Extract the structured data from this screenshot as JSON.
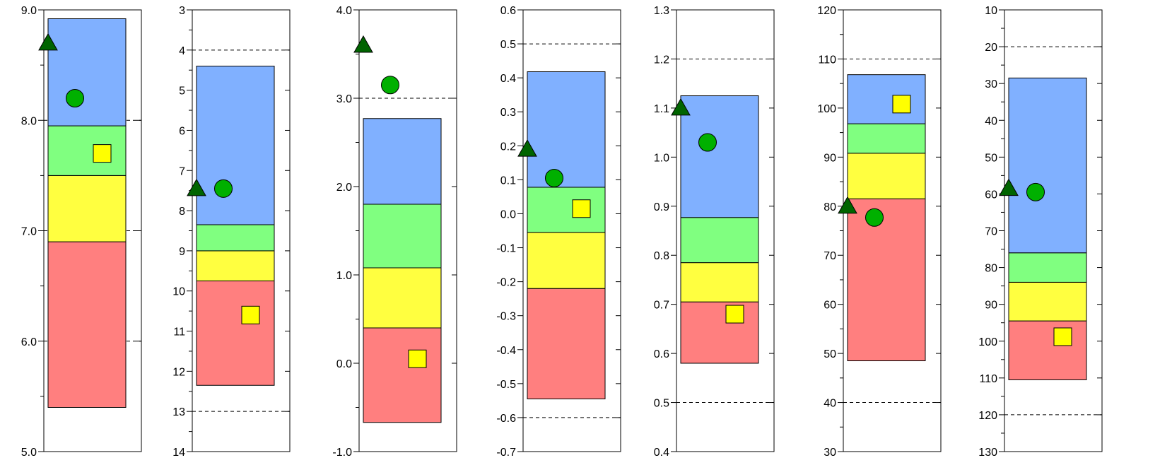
{
  "chart_data": {
    "type": "bar",
    "colors": {
      "band_1": "#ff7f7f",
      "band_2": "#ffff40",
      "band_3": "#80ff80",
      "band_4": "#80b0ff",
      "circle": "#00b000",
      "triangle": "#006400",
      "square": "#ffff00",
      "gridline": "#000000"
    },
    "panels": [
      {
        "ylim": [
          5.0,
          9.0
        ],
        "inverted": false,
        "ticks": [
          "5.0",
          "6.0",
          "7.0",
          "8.0",
          "9.0"
        ],
        "tick_values": [
          5,
          6,
          7,
          8,
          9
        ],
        "minor_step": 0.5,
        "grid": [
          6.0,
          7.0,
          8.0
        ],
        "bands": [
          5.4,
          6.9,
          7.5,
          7.95,
          8.92
        ],
        "triangle": 8.7,
        "circle": 8.2,
        "square": 7.7
      },
      {
        "ylim": [
          3,
          14
        ],
        "inverted": true,
        "ticks": [
          "3",
          "4",
          "5",
          "6",
          "7",
          "8",
          "9",
          "10",
          "11",
          "12",
          "13",
          "14"
        ],
        "tick_values": [
          3,
          4,
          5,
          6,
          7,
          8,
          9,
          10,
          11,
          12,
          13,
          14
        ],
        "minor_step": 0.5,
        "grid": [
          4,
          13
        ],
        "bands": [
          12.35,
          9.75,
          9.0,
          8.35,
          4.4
        ],
        "triangle": 7.45,
        "circle": 7.45,
        "square": 10.6
      },
      {
        "ylim": [
          -1.0,
          4.0
        ],
        "inverted": false,
        "ticks": [
          "-1.0",
          "0.0",
          "1.0",
          "2.0",
          "3.0",
          "4.0"
        ],
        "tick_values": [
          -1,
          0,
          1,
          2,
          3,
          4
        ],
        "minor_step": 0.5,
        "grid": [
          3.0
        ],
        "bands": [
          -0.67,
          0.4,
          1.08,
          1.8,
          2.77
        ],
        "triangle": 3.6,
        "circle": 3.15,
        "square": 0.05
      },
      {
        "ylim": [
          -0.7,
          0.6
        ],
        "inverted": false,
        "ticks": [
          "-0.7",
          "-0.6",
          "-0.5",
          "-0.4",
          "-0.3",
          "-0.2",
          "-0.1",
          "0.0",
          "0.1",
          "0.2",
          "0.3",
          "0.4",
          "0.5",
          "0.6"
        ],
        "tick_values": [
          -0.7,
          -0.6,
          -0.5,
          -0.4,
          -0.3,
          -0.2,
          -0.1,
          0,
          0.1,
          0.2,
          0.3,
          0.4,
          0.5,
          0.6
        ],
        "minor_step": 0.1,
        "grid": [
          -0.7,
          -0.6,
          0.5,
          0.6
        ],
        "bands": [
          -0.545,
          -0.22,
          -0.055,
          0.078,
          0.418
        ],
        "triangle": 0.19,
        "circle": 0.105,
        "square": 0.015
      },
      {
        "ylim": [
          0.4,
          1.3
        ],
        "inverted": false,
        "ticks": [
          "0.4",
          "0.5",
          "0.6",
          "0.7",
          "0.8",
          "0.9",
          "1.0",
          "1.1",
          "1.2",
          "1.3"
        ],
        "tick_values": [
          0.4,
          0.5,
          0.6,
          0.7,
          0.8,
          0.9,
          1.0,
          1.1,
          1.2,
          1.3
        ],
        "minor_step": 0.1,
        "grid": [
          0.5,
          1.2
        ],
        "bands": [
          0.58,
          0.705,
          0.785,
          0.877,
          1.125
        ],
        "triangle": 1.1,
        "circle": 1.03,
        "square": 0.68
      },
      {
        "ylim": [
          30,
          120
        ],
        "inverted": false,
        "ticks": [
          "30",
          "40",
          "50",
          "60",
          "70",
          "80",
          "90",
          "100",
          "110",
          "120"
        ],
        "tick_values": [
          30,
          40,
          50,
          60,
          70,
          80,
          90,
          100,
          110,
          120
        ],
        "minor_step": 5,
        "grid": [
          40,
          110
        ],
        "bands": [
          48.5,
          81.5,
          90.8,
          96.8,
          106.8
        ],
        "triangle": 80.0,
        "circle": 77.7,
        "square": 100.8
      },
      {
        "ylim": [
          10,
          130
        ],
        "inverted": true,
        "ticks": [
          "10",
          "20",
          "30",
          "40",
          "50",
          "60",
          "70",
          "80",
          "90",
          "100",
          "110",
          "120",
          "130"
        ],
        "tick_values": [
          10,
          20,
          30,
          40,
          50,
          60,
          70,
          80,
          90,
          100,
          110,
          120,
          130
        ],
        "minor_step": 5,
        "grid": [
          20,
          120
        ],
        "bands": [
          110.5,
          94.5,
          84.0,
          76.0,
          28.5
        ],
        "triangle": 58.5,
        "circle": 59.5,
        "square": 98.8
      }
    ]
  }
}
